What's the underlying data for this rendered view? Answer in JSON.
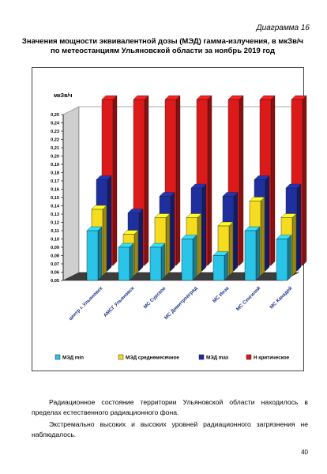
{
  "page": {
    "diagram_label": "Диаграмма 16",
    "page_number": "40"
  },
  "text": {
    "p1": "Радиационное состояние территории Ульяновской области находилось в пределах естественного радиационного фона.",
    "p2": "Экстремально высоких и высоких уровней радиационного загрязнения не наблюдалось."
  },
  "chart_data": {
    "type": "bar",
    "title_line1": "Значения мощности эквивалентной дозы (МЭД) гамма-излучения, в мкЗв/ч",
    "title_line2": "по метеостанциям Ульяновской области за ноябрь 2019 год",
    "ylabel": "мкЗв/ч",
    "ylim": [
      0.05,
      0.25
    ],
    "y_ticks": [
      "0,05",
      "0,06",
      "0,07",
      "0,08",
      "0,09",
      "0,10",
      "0,11",
      "0,12",
      "0,13",
      "0,14",
      "0,15",
      "0,16",
      "0,17",
      "0,18",
      "0,19",
      "0,20",
      "0,21",
      "0,22",
      "0,23",
      "0,24",
      "0,25"
    ],
    "categories": [
      "центр г. Ульяновск",
      "АМСГ Ульяновск",
      "МС Сурское",
      "МС Димитровград",
      "МС Инза",
      "МС Сенгилей",
      "МС Канадей"
    ],
    "series": [
      {
        "name": "МЭД min",
        "values": [
          0.11,
          0.09,
          0.09,
          0.1,
          0.08,
          0.11,
          0.1
        ]
      },
      {
        "name": "МЭД среднемесячное",
        "values": [
          0.13,
          0.1,
          0.12,
          0.12,
          0.11,
          0.14,
          0.12
        ]
      },
      {
        "name": "МЭД max",
        "values": [
          0.16,
          0.12,
          0.14,
          0.15,
          0.14,
          0.16,
          0.15
        ]
      },
      {
        "name": "Н критическое",
        "values": [
          0.25,
          0.25,
          0.25,
          0.25,
          0.25,
          0.25,
          0.25
        ]
      }
    ],
    "colors": [
      "#29c4e8",
      "#f5dc1e",
      "#1f2f9e",
      "#dc1a1a"
    ],
    "legend_position": "bottom",
    "grid": false
  }
}
